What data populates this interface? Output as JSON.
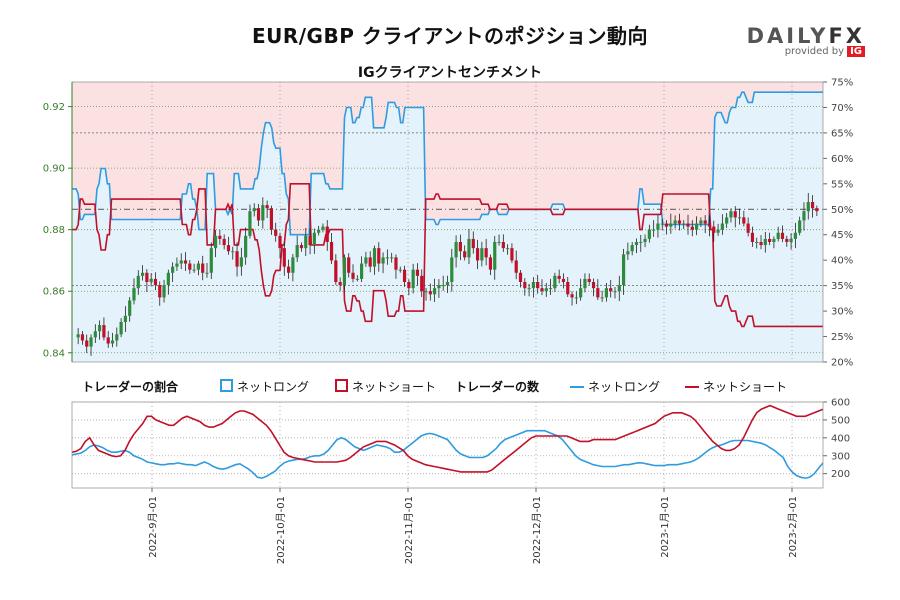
{
  "title": "EUR/GBP クライアントのポジション動向",
  "subtitle": "IGクライアントセンチメント",
  "logo": {
    "brand_a": "DAILY",
    "brand_b": "FX",
    "by": "provided by",
    "ig": "IG"
  },
  "legend": {
    "ratio_title": "トレーダーの割合",
    "net_long": "ネットロング",
    "net_short": "ネットショート",
    "count_title": "トレーダーの数"
  },
  "colors": {
    "long": "#2f9be0",
    "short": "#c0102a",
    "long_fill": "#e4f2fb",
    "short_fill": "#fbe1e2",
    "up": "#2e8b3e",
    "down": "#c0102a"
  },
  "chart_data": [
    {
      "type": "candlestick",
      "ylim": [
        0.837,
        0.928
      ],
      "price_ticks": [
        "0.84",
        "0.86",
        "0.88",
        "0.90",
        "0.92"
      ],
      "right_ylim": [
        20,
        75
      ],
      "right_ticks": [
        "20%",
        "25%",
        "30%",
        "35%",
        "40%",
        "45%",
        "50%",
        "55%",
        "60%",
        "65%",
        "70%",
        "75%"
      ],
      "x_labels": [
        "2022-9月-01",
        "2022-10月-01",
        "2022-11月-01",
        "2022-12月-01",
        "2023-1月-01",
        "2023-2月-01"
      ],
      "closes": [
        0.846,
        0.844,
        0.842,
        0.845,
        0.847,
        0.849,
        0.845,
        0.843,
        0.844,
        0.846,
        0.85,
        0.852,
        0.857,
        0.861,
        0.865,
        0.866,
        0.863,
        0.864,
        0.862,
        0.858,
        0.862,
        0.866,
        0.868,
        0.869,
        0.87,
        0.869,
        0.867,
        0.867,
        0.869,
        0.866,
        0.866,
        0.874,
        0.878,
        0.877,
        0.875,
        0.873,
        0.873,
        0.868,
        0.871,
        0.878,
        0.886,
        0.887,
        0.883,
        0.888,
        0.887,
        0.88,
        0.878,
        0.874,
        0.868,
        0.866,
        0.871,
        0.875,
        0.874,
        0.878,
        0.875,
        0.879,
        0.88,
        0.881,
        0.876,
        0.87,
        0.863,
        0.862,
        0.871,
        0.866,
        0.864,
        0.864,
        0.869,
        0.871,
        0.868,
        0.874,
        0.869,
        0.871,
        0.871,
        0.871,
        0.867,
        0.867,
        0.863,
        0.861,
        0.867,
        0.865,
        0.86,
        0.86,
        0.859,
        0.861,
        0.862,
        0.862,
        0.863,
        0.871,
        0.876,
        0.873,
        0.871,
        0.877,
        0.874,
        0.87,
        0.874,
        0.871,
        0.867,
        0.876,
        0.876,
        0.874,
        0.874,
        0.87,
        0.866,
        0.863,
        0.861,
        0.861,
        0.863,
        0.861,
        0.86,
        0.861,
        0.861,
        0.865,
        0.864,
        0.863,
        0.859,
        0.858,
        0.858,
        0.861,
        0.864,
        0.863,
        0.861,
        0.858,
        0.858,
        0.861,
        0.86,
        0.86,
        0.862,
        0.872,
        0.873,
        0.875,
        0.876,
        0.876,
        0.877,
        0.88,
        0.88,
        0.882,
        0.882,
        0.881,
        0.882,
        0.883,
        0.882,
        0.882,
        0.881,
        0.88,
        0.882,
        0.883,
        0.882,
        0.881,
        0.879,
        0.88,
        0.882,
        0.884,
        0.886,
        0.884,
        0.884,
        0.882,
        0.879,
        0.876,
        0.876,
        0.875,
        0.877,
        0.876,
        0.877,
        0.879,
        0.877,
        0.876,
        0.877,
        0.879,
        0.883,
        0.886,
        0.889,
        0.887,
        0.886
      ],
      "sentiment_pct_long": [
        54,
        54,
        54,
        53,
        48,
        48,
        49,
        49,
        49,
        49,
        49,
        49,
        54,
        55,
        58,
        58,
        58,
        55,
        55,
        48,
        48,
        48,
        48,
        48,
        48,
        48,
        48,
        48,
        48,
        48,
        48,
        48,
        48,
        48,
        48,
        48,
        48,
        48,
        48,
        48,
        48,
        48,
        48,
        48,
        48,
        48,
        48,
        48,
        48,
        48,
        48,
        48,
        48,
        53,
        53,
        53,
        55,
        55,
        52,
        52,
        50,
        46,
        46,
        46,
        46,
        57,
        57,
        57,
        57,
        50,
        50,
        50,
        50,
        50,
        50,
        49,
        50,
        49,
        57,
        57,
        57,
        54,
        54,
        54,
        54,
        54,
        54,
        54,
        56,
        56,
        58,
        62,
        65,
        67,
        67,
        67,
        66,
        63,
        62,
        62,
        62,
        57,
        57,
        53,
        52,
        45,
        45,
        45,
        45,
        45,
        45,
        45,
        45,
        45,
        45,
        57,
        57,
        57,
        57,
        57,
        57,
        57,
        55,
        55,
        54,
        54,
        54,
        54,
        54,
        54,
        54,
        68,
        70,
        70,
        70,
        67,
        67,
        68,
        68,
        70,
        70,
        72,
        72,
        72,
        72,
        66,
        66,
        66,
        66,
        66,
        66,
        68,
        71,
        71,
        71,
        71,
        70,
        70,
        67,
        67,
        70,
        70,
        70,
        70,
        70,
        70,
        70,
        70,
        70,
        70,
        48,
        48,
        48,
        48,
        48,
        47,
        47,
        48,
        48,
        48,
        48,
        48,
        48,
        48,
        48,
        48,
        48,
        48,
        48,
        48,
        48,
        48,
        48,
        48,
        48,
        48,
        48,
        49,
        49,
        49,
        49,
        50,
        50,
        50,
        50,
        49,
        49,
        49,
        49,
        49,
        50,
        50,
        50,
        50,
        50,
        50,
        50,
        50,
        50,
        50,
        50,
        50,
        50,
        50,
        50,
        50,
        50,
        50,
        50,
        50,
        50,
        51,
        51,
        51,
        51,
        51,
        51,
        50,
        50,
        50,
        50,
        50,
        50,
        50,
        50,
        50,
        50,
        50,
        50,
        50,
        50,
        50,
        50,
        50,
        50,
        50,
        50,
        50,
        50,
        50,
        50,
        50,
        50,
        50,
        50,
        50,
        50,
        50,
        50,
        50,
        50,
        50,
        50,
        54,
        54,
        51,
        51,
        51,
        51,
        51,
        51,
        51,
        51,
        51,
        47,
        47,
        47,
        47,
        47,
        47,
        47,
        47,
        47,
        47,
        47,
        47,
        47,
        47,
        47,
        47,
        47,
        47,
        47,
        47,
        47,
        47,
        47,
        54,
        54,
        68,
        69,
        69,
        69,
        68,
        67,
        67,
        69,
        70,
        70,
        70,
        72,
        72,
        73,
        73,
        72,
        71,
        71,
        71,
        73,
        73,
        73,
        73,
        73,
        73,
        73,
        73,
        73,
        73,
        73,
        73,
        73,
        73,
        73,
        73,
        73,
        73,
        73,
        73,
        73,
        73,
        73,
        73,
        73,
        73,
        73,
        73,
        73,
        73,
        73,
        73,
        73,
        73
      ]
    },
    {
      "type": "line",
      "ylim": [
        120,
        600
      ],
      "ticks": [
        "200",
        "300",
        "400",
        "500",
        "600"
      ],
      "series": [
        {
          "name": "ネットロング",
          "values": [
            305,
            310,
            315,
            330,
            350,
            360,
            355,
            345,
            330,
            320,
            320,
            325,
            330,
            320,
            300,
            290,
            280,
            265,
            260,
            255,
            250,
            250,
            255,
            255,
            260,
            255,
            250,
            250,
            245,
            255,
            265,
            255,
            240,
            230,
            225,
            230,
            240,
            250,
            255,
            240,
            225,
            205,
            180,
            175,
            185,
            200,
            215,
            240,
            260,
            270,
            275,
            280,
            280,
            285,
            295,
            300,
            300,
            310,
            330,
            360,
            390,
            400,
            390,
            370,
            350,
            340,
            330,
            340,
            350,
            360,
            355,
            350,
            340,
            320,
            320,
            330,
            350,
            370,
            390,
            410,
            420,
            425,
            420,
            410,
            400,
            390,
            360,
            330,
            310,
            300,
            290,
            290,
            290,
            290,
            300,
            320,
            340,
            370,
            390,
            400,
            410,
            420,
            430,
            440,
            440,
            440,
            440,
            440,
            430,
            420,
            410,
            390,
            360,
            330,
            300,
            280,
            270,
            260,
            250,
            245,
            240,
            240,
            240,
            240,
            245,
            250,
            250,
            255,
            260,
            260,
            255,
            250,
            245,
            245,
            245,
            250,
            250,
            250,
            255,
            260,
            265,
            275,
            290,
            310,
            330,
            345,
            355,
            360,
            370,
            380,
            385,
            385,
            385,
            385,
            380,
            375,
            370,
            360,
            345,
            330,
            310,
            290,
            240,
            210,
            190,
            180,
            175,
            180,
            200,
            230,
            260
          ]
        },
        {
          "name": "ネットショート",
          "values": [
            320,
            325,
            340,
            380,
            400,
            360,
            330,
            320,
            310,
            300,
            295,
            300,
            330,
            380,
            420,
            450,
            480,
            520,
            520,
            500,
            490,
            480,
            470,
            470,
            490,
            510,
            520,
            510,
            500,
            490,
            470,
            460,
            460,
            470,
            480,
            500,
            520,
            540,
            550,
            550,
            540,
            530,
            510,
            490,
            470,
            440,
            400,
            360,
            320,
            300,
            290,
            285,
            280,
            275,
            270,
            265,
            265,
            265,
            265,
            265,
            265,
            270,
            275,
            290,
            310,
            330,
            350,
            360,
            370,
            380,
            380,
            380,
            370,
            360,
            345,
            330,
            300,
            280,
            270,
            260,
            250,
            245,
            240,
            235,
            230,
            225,
            220,
            215,
            210,
            210,
            210,
            210,
            210,
            210,
            210,
            220,
            240,
            260,
            280,
            300,
            320,
            340,
            360,
            380,
            400,
            410,
            410,
            410,
            410,
            410,
            410,
            410,
            410,
            400,
            390,
            380,
            380,
            380,
            390,
            390,
            390,
            390,
            390,
            390,
            400,
            410,
            420,
            430,
            440,
            450,
            460,
            470,
            480,
            500,
            520,
            530,
            540,
            540,
            540,
            530,
            520,
            500,
            470,
            440,
            410,
            380,
            360,
            340,
            330,
            330,
            340,
            360,
            400,
            450,
            500,
            540,
            560,
            570,
            580,
            570,
            560,
            550,
            540,
            530,
            520,
            520,
            520,
            530,
            540,
            550,
            560
          ]
        }
      ],
      "x_labels": [
        "2022-9月-01",
        "2022-10月-01",
        "2022-11月-01",
        "2022-12月-01",
        "2023-1月-01",
        "2023-2月-01"
      ]
    }
  ]
}
